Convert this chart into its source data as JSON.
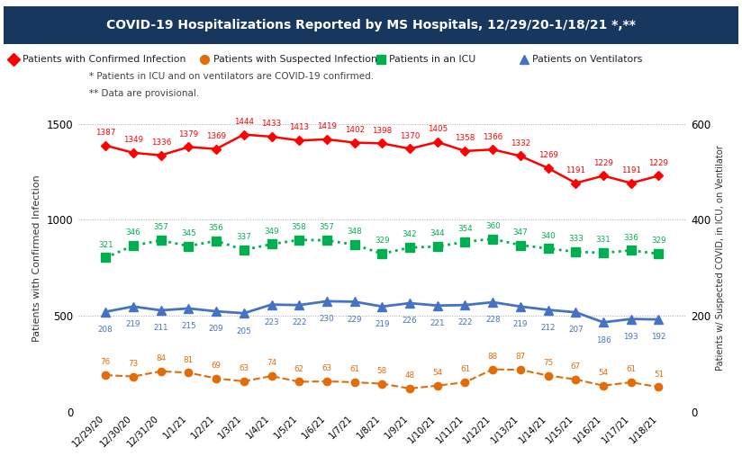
{
  "dates": [
    "12/29/20",
    "12/30/20",
    "12/31/20",
    "1/1/21",
    "1/2/21",
    "1/3/21",
    "1/4/21",
    "1/5/21",
    "1/6/21",
    "1/7/21",
    "1/8/21",
    "1/9/21",
    "1/10/21",
    "1/11/21",
    "1/12/21",
    "1/13/21",
    "1/14/21",
    "1/15/21",
    "1/16/21",
    "1/17/21",
    "1/18/21"
  ],
  "confirmed": [
    1387,
    1349,
    1336,
    1379,
    1369,
    1444,
    1433,
    1413,
    1419,
    1402,
    1398,
    1370,
    1405,
    1358,
    1366,
    1332,
    1269,
    1191,
    1229,
    1191,
    1229
  ],
  "suspected": [
    76,
    73,
    84,
    81,
    69,
    63,
    74,
    62,
    63,
    61,
    58,
    48,
    54,
    61,
    88,
    87,
    75,
    67,
    54,
    61,
    51
  ],
  "icu": [
    321,
    346,
    357,
    345,
    356,
    337,
    349,
    358,
    357,
    348,
    329,
    342,
    344,
    354,
    360,
    347,
    340,
    333,
    331,
    336,
    329
  ],
  "ventilators": [
    208,
    219,
    211,
    215,
    209,
    205,
    223,
    222,
    230,
    229,
    219,
    226,
    221,
    222,
    228,
    219,
    212,
    207,
    186,
    193,
    192
  ],
  "confirmed_color": "#FF0000",
  "suspected_color": "#E36C09",
  "icu_color": "#00B050",
  "ventilator_color": "#4472C4",
  "title": "COVID-19 Hospitalizations Reported by MS Hospitals, 12/29/20-1/18/21 *,**",
  "title_bg": "#17375E",
  "title_color": "#FFFFFF",
  "ylabel_left": "Patients with Confirmed Infection",
  "ylabel_right": "Patients w/ Suspected COVID, in ICU, on Ventilator",
  "footnote1": "* Patients in ICU and on ventilators are COVID-19 confirmed.",
  "footnote2": "** Data are provisional.",
  "legend_labels": [
    "Patients with Confirmed Infection",
    "Patients with Suspected Infection",
    "Patients in an ICU",
    "Patients on Ventilators"
  ],
  "ylim_left": [
    0,
    1600
  ],
  "ylim_right": [
    0,
    640
  ],
  "yticks_left": [
    0,
    500,
    1000,
    1500
  ],
  "yticks_right": [
    0,
    200,
    400,
    600
  ],
  "background_color": "#FFFFFF",
  "grid_color": "#AAAAAA"
}
